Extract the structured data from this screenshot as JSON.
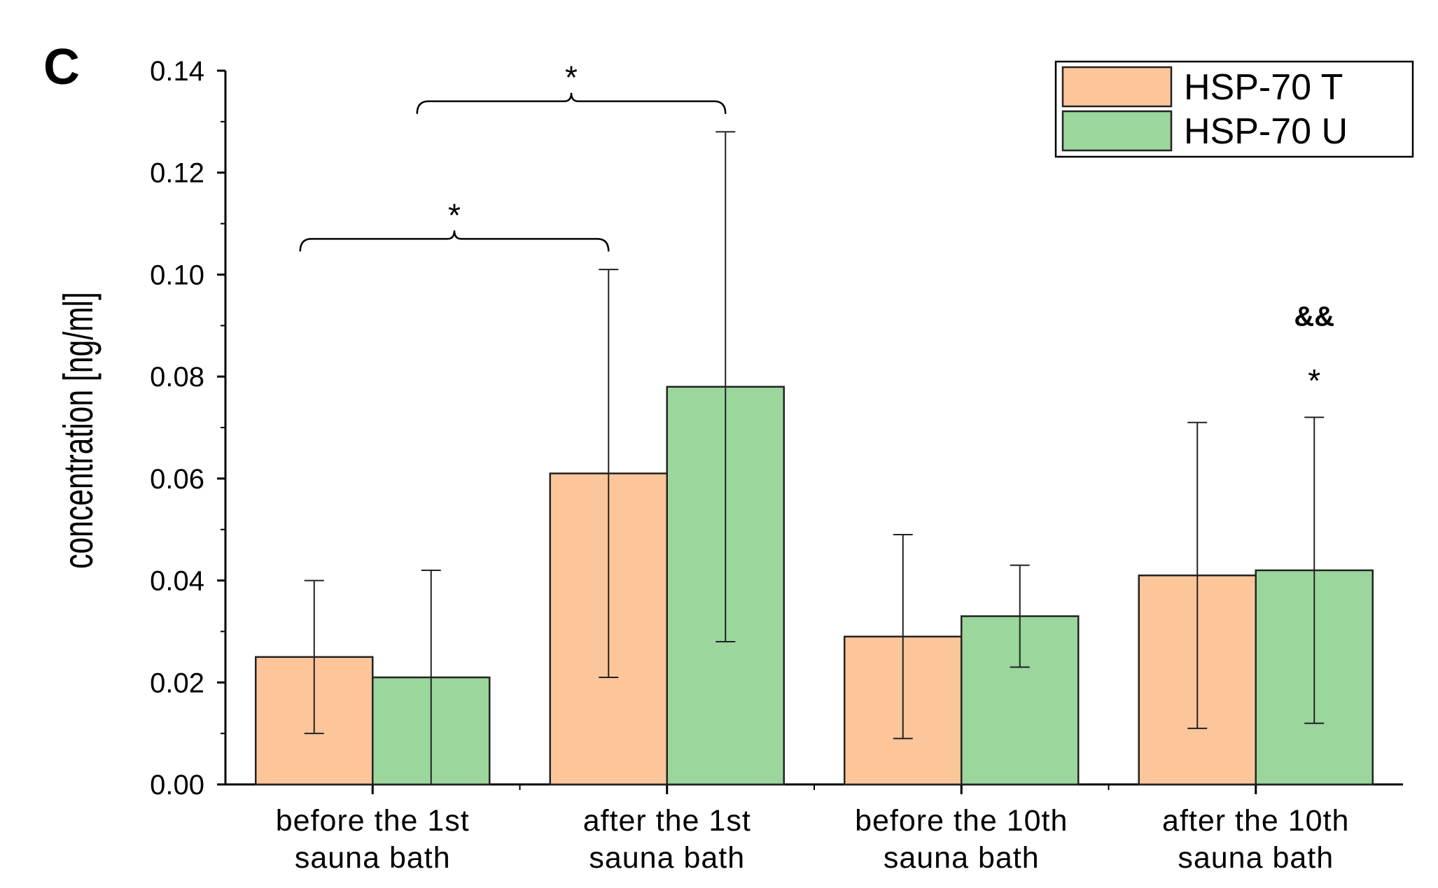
{
  "panel_letter": "C",
  "chart_data": {
    "type": "bar",
    "title": "",
    "xlabel": "",
    "ylabel": "concentration [ng/ml]",
    "ylim": [
      0,
      0.14
    ],
    "yticks": [
      "0.00",
      "0.02",
      "0.04",
      "0.06",
      "0.08",
      "0.10",
      "0.12",
      "0.14"
    ],
    "categories": [
      [
        "before the 1st",
        "sauna bath"
      ],
      [
        "after the 1st",
        "sauna bath"
      ],
      [
        "before the 10th",
        "sauna bath"
      ],
      [
        "after the 10th",
        "sauna bath"
      ]
    ],
    "series": [
      {
        "name": "HSP-70 T",
        "color": "#FCC69A",
        "values": [
          0.025,
          0.061,
          0.029,
          0.041
        ],
        "error": [
          [
            0.01,
            0.04
          ],
          [
            0.021,
            0.101
          ],
          [
            0.009,
            0.049
          ],
          [
            0.011,
            0.071
          ]
        ]
      },
      {
        "name": "HSP-70 U",
        "color": "#9BD69C",
        "values": [
          0.021,
          0.078,
          0.033,
          0.042
        ],
        "error": [
          [
            0.0,
            0.042
          ],
          [
            0.028,
            0.128
          ],
          [
            0.023,
            0.043
          ],
          [
            0.012,
            0.072
          ]
        ]
      }
    ],
    "legend": "top-right",
    "grid": false,
    "annotations": [
      {
        "type": "bracket",
        "from": {
          "category": 0,
          "series": 0
        },
        "to": {
          "category": 1,
          "series": 0
        },
        "y": 0.107,
        "text": "*"
      },
      {
        "type": "bracket",
        "from": {
          "category": 0,
          "series": 1
        },
        "to": {
          "category": 1,
          "series": 1
        },
        "y": 0.134,
        "text": "*"
      },
      {
        "type": "mark",
        "category": 3,
        "series": 1,
        "text": "*",
        "y": 0.077
      },
      {
        "type": "mark",
        "category": 3,
        "series": 1,
        "text": "&&",
        "y": 0.09,
        "bold": true
      }
    ]
  }
}
